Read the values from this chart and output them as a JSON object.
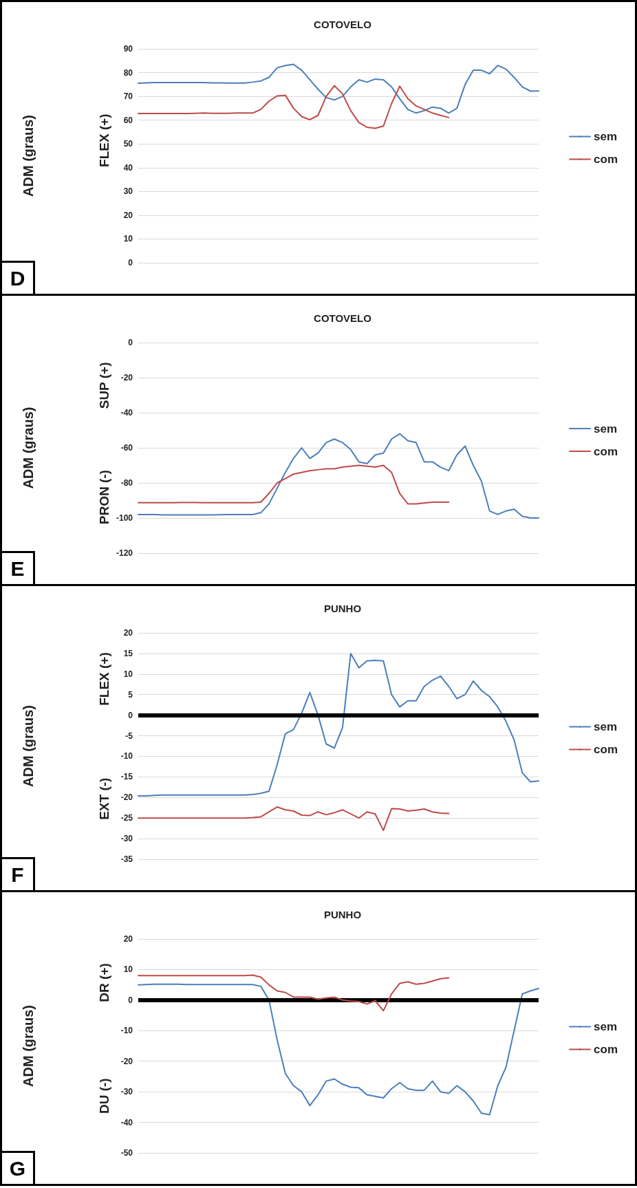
{
  "chart_data": [
    {
      "type": "line",
      "title": "COTOVELO",
      "ylabel": "ADM (graus)",
      "annotations": [
        "D",
        "FLEX (+)"
      ],
      "categories": [
        null,
        null,
        null,
        null,
        null,
        null,
        null,
        null,
        null,
        null,
        null,
        null,
        null,
        null,
        null,
        null,
        null,
        null,
        null,
        null,
        null,
        null,
        null,
        null,
        null,
        null,
        null,
        null,
        null,
        null,
        null,
        null,
        null,
        null,
        null,
        null,
        null,
        null,
        null,
        null,
        null,
        null,
        null,
        null,
        null,
        null,
        null,
        null,
        null,
        null
      ],
      "ylim": [
        0,
        90
      ],
      "yticks": [
        0,
        10,
        20,
        30,
        40,
        50,
        60,
        70,
        80,
        90
      ],
      "grid": "y",
      "legend": "right",
      "marker": "none",
      "line_style": "solid",
      "series": [
        {
          "name": "sem",
          "color": "#4a7ebb",
          "values": [
            75.5,
            75.7,
            75.8,
            75.8,
            75.8,
            75.8,
            75.8,
            75.8,
            75.8,
            75.7,
            75.7,
            75.6,
            75.6,
            75.6,
            76,
            76.5,
            78,
            82,
            83,
            83.5,
            81,
            77,
            73,
            69.5,
            68.5,
            70,
            74,
            77,
            76,
            77.3,
            77,
            74,
            69,
            64.5,
            63,
            64,
            65.5,
            65,
            63,
            65,
            75,
            81,
            81,
            79.5,
            83,
            81.5,
            78,
            74,
            72.2,
            72.3
          ]
        },
        {
          "name": "com",
          "color": "#be4b48",
          "values": [
            62.8,
            62.8,
            62.8,
            62.8,
            62.8,
            62.8,
            62.8,
            62.9,
            63,
            62.9,
            62.9,
            62.9,
            63,
            63,
            63,
            64.5,
            68,
            70.2,
            70.5,
            65,
            61.5,
            60.2,
            62,
            70,
            74.5,
            71,
            64,
            59,
            57,
            56.6,
            57.5,
            67,
            74.3,
            69,
            66,
            64.5,
            63,
            62,
            61.1,
            null,
            null,
            null,
            null,
            null,
            null,
            null,
            null,
            null,
            null,
            null
          ]
        }
      ]
    },
    {
      "type": "line",
      "title": "COTOVELO",
      "ylabel": "ADM (graus)",
      "annotations": [
        "E",
        "SUP (+)",
        "PRON (-)"
      ],
      "categories": [
        null,
        null,
        null,
        null,
        null,
        null,
        null,
        null,
        null,
        null,
        null,
        null,
        null,
        null,
        null,
        null,
        null,
        null,
        null,
        null,
        null,
        null,
        null,
        null,
        null,
        null,
        null,
        null,
        null,
        null,
        null,
        null,
        null,
        null,
        null,
        null,
        null,
        null,
        null,
        null,
        null,
        null,
        null,
        null,
        null,
        null,
        null,
        null,
        null,
        null
      ],
      "ylim": [
        -120,
        0
      ],
      "yticks": [
        -120,
        -100,
        -80,
        -60,
        -40,
        -20,
        0
      ],
      "grid": "y",
      "legend": "right",
      "marker": "none",
      "line_style": "solid",
      "series": [
        {
          "name": "sem",
          "color": "#4a7ebb",
          "values": [
            -98,
            -98,
            -98,
            -98.2,
            -98.2,
            -98.2,
            -98.2,
            -98.2,
            -98.2,
            -98.2,
            -98.1,
            -98,
            -98,
            -98,
            -98,
            -97,
            -92,
            -83,
            -74,
            -66,
            -60,
            -66,
            -63,
            -57,
            -55,
            -57,
            -61,
            -68,
            -69,
            -64,
            -63,
            -55,
            -52,
            -56,
            -57,
            -68,
            -68,
            -71,
            -73,
            -64,
            -59,
            -70,
            -79,
            -96,
            -98,
            -96,
            -95,
            -99,
            -100,
            -100
          ]
        },
        {
          "name": "com",
          "color": "#be4b48",
          "values": [
            -91.3,
            -91.3,
            -91.3,
            -91.3,
            -91.3,
            -91.2,
            -91.2,
            -91.2,
            -91.3,
            -91.3,
            -91.3,
            -91.3,
            -91.3,
            -91.3,
            -91.3,
            -91,
            -86,
            -80,
            -77.5,
            -75,
            -74,
            -73,
            -72.5,
            -72,
            -72,
            -71,
            -70.5,
            -70,
            -70.5,
            -71,
            -70,
            -74,
            -86,
            -92,
            -92,
            -91.5,
            -91,
            -91,
            -91,
            null,
            null,
            null,
            null,
            null,
            null,
            null,
            null,
            null,
            null,
            null
          ]
        }
      ]
    },
    {
      "type": "line",
      "title": "PUNHO",
      "ylabel": "ADM (graus)",
      "annotations": [
        "F",
        "FLEX (+)",
        "EXT (-)"
      ],
      "categories": [
        null,
        null,
        null,
        null,
        null,
        null,
        null,
        null,
        null,
        null,
        null,
        null,
        null,
        null,
        null,
        null,
        null,
        null,
        null,
        null,
        null,
        null,
        null,
        null,
        null,
        null,
        null,
        null,
        null,
        null,
        null,
        null,
        null,
        null,
        null,
        null,
        null,
        null,
        null,
        null,
        null,
        null,
        null,
        null,
        null,
        null,
        null,
        null,
        null,
        null
      ],
      "ylim": [
        -35,
        20
      ],
      "yticks": [
        -35,
        -30,
        -25,
        -20,
        -15,
        -10,
        -5,
        0,
        5,
        10,
        15,
        20
      ],
      "grid": "y",
      "legend": "right",
      "marker": "none",
      "line_style": "solid",
      "ref_lines": [
        {
          "axis": "y",
          "value": 0,
          "color": "#000000"
        }
      ],
      "series": [
        {
          "name": "sem",
          "color": "#4a7ebb",
          "values": [
            -19.6,
            -19.6,
            -19.5,
            -19.4,
            -19.4,
            -19.4,
            -19.4,
            -19.4,
            -19.4,
            -19.4,
            -19.4,
            -19.4,
            -19.4,
            -19.4,
            -19.3,
            -19,
            -18.5,
            -12,
            -4.5,
            -3.5,
            0.5,
            5.5,
            0,
            -7,
            -8,
            -3,
            15,
            11.5,
            13.2,
            13.3,
            13.2,
            5,
            2,
            3.5,
            3.5,
            7,
            8.5,
            9.5,
            7,
            4,
            5,
            8.3,
            6,
            4.5,
            2,
            -1.5,
            -6,
            -14,
            -16.2,
            -16
          ]
        },
        {
          "name": "com",
          "color": "#be4b48",
          "values": [
            -25,
            -25,
            -25,
            -25,
            -25,
            -25,
            -25,
            -25,
            -25,
            -25,
            -25,
            -25,
            -25,
            -25,
            -24.9,
            -24.7,
            -23.5,
            -22.3,
            -23,
            -23.3,
            -24.3,
            -24.4,
            -23.5,
            -24.2,
            -23.7,
            -23,
            -24,
            -25,
            -23.5,
            -24,
            -28,
            -22.7,
            -22.8,
            -23.3,
            -23.1,
            -22.8,
            -23.5,
            -23.8,
            -23.9,
            null,
            null,
            null,
            null,
            null,
            null,
            null,
            null,
            null,
            null,
            null
          ]
        }
      ]
    },
    {
      "type": "line",
      "title": "PUNHO",
      "ylabel": "ADM (graus)",
      "annotations": [
        "G",
        "DR (+)",
        "DU (-)"
      ],
      "categories": [
        null,
        null,
        null,
        null,
        null,
        null,
        null,
        null,
        null,
        null,
        null,
        null,
        null,
        null,
        null,
        null,
        null,
        null,
        null,
        null,
        null,
        null,
        null,
        null,
        null,
        null,
        null,
        null,
        null,
        null,
        null,
        null,
        null,
        null,
        null,
        null,
        null,
        null,
        null,
        null,
        null,
        null,
        null,
        null,
        null,
        null,
        null,
        null,
        null,
        null
      ],
      "ylim": [
        -50,
        20
      ],
      "yticks": [
        -50,
        -40,
        -30,
        -20,
        -10,
        0,
        10,
        20
      ],
      "grid": "y",
      "legend": "right",
      "marker": "none",
      "line_style": "solid",
      "ref_lines": [
        {
          "axis": "y",
          "value": 0,
          "color": "#000000"
        }
      ],
      "series": [
        {
          "name": "sem",
          "color": "#4a7ebb",
          "values": [
            5,
            5.1,
            5.2,
            5.2,
            5.2,
            5.2,
            5.1,
            5.1,
            5.1,
            5.1,
            5.1,
            5.1,
            5.1,
            5.1,
            5.1,
            4.5,
            0,
            -13,
            -24,
            -28,
            -30,
            -34.5,
            -31,
            -26.5,
            -25.8,
            -27.5,
            -28.5,
            -28.7,
            -31,
            -31.5,
            -32,
            -29,
            -27,
            -29,
            -29.5,
            -29.5,
            -26.5,
            -30,
            -30.5,
            -28,
            -30,
            -33,
            -37,
            -37.5,
            -28,
            -22,
            -10,
            2,
            3,
            3.8
          ]
        },
        {
          "name": "com",
          "color": "#be4b48",
          "values": [
            8,
            8,
            8,
            8,
            8,
            8,
            8,
            8,
            8,
            8,
            8,
            8,
            8,
            8,
            8.2,
            7.5,
            5,
            3,
            2.5,
            1,
            1,
            1,
            0.3,
            0.7,
            1,
            0,
            -0.3,
            -0.5,
            -1.3,
            -0.2,
            -3.5,
            2,
            5.5,
            6,
            5.2,
            5.5,
            6.2,
            7,
            7.3,
            null,
            null,
            null,
            null,
            null,
            null,
            null,
            null,
            null,
            null,
            null
          ]
        }
      ]
    }
  ]
}
